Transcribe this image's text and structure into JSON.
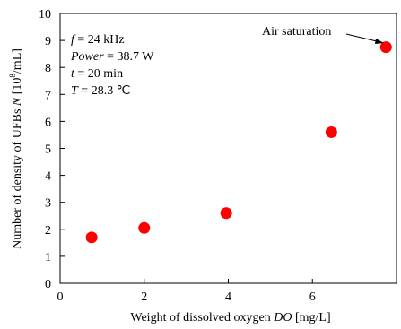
{
  "chart_data": {
    "type": "scatter",
    "title": "",
    "xlabel_prefix": "Weight of dissolved oxygen ",
    "xlabel_var": "DO",
    "xlabel_unit": " [mg/L]",
    "ylabel_prefix": "Number of density of UFBs ",
    "ylabel_var": "N",
    "ylabel_unit_a": " [10",
    "ylabel_unit_exp": "8",
    "ylabel_unit_b": "/mL]",
    "xlim": [
      0,
      8
    ],
    "ylim": [
      0,
      10
    ],
    "x_ticks": [
      "0",
      "2",
      "4",
      "6"
    ],
    "y_ticks": [
      "0",
      "1",
      "2",
      "3",
      "4",
      "5",
      "6",
      "7",
      "8",
      "9",
      "10"
    ],
    "grid": false,
    "marker_color": "#ff0000",
    "series": [
      {
        "x": [
          0.75,
          2.0,
          3.95,
          6.45,
          7.75
        ],
        "y": [
          1.7,
          2.05,
          2.6,
          5.6,
          8.75
        ]
      }
    ],
    "conditions": [
      {
        "var": "f",
        "text": " = 24 kHz"
      },
      {
        "var": "Power",
        "text": " = 38.7 W"
      },
      {
        "var": "t",
        "text": " = 20 min"
      },
      {
        "var": "T",
        "text": " = 28.3 ℃"
      }
    ],
    "annotation": {
      "text": "Air saturation",
      "x": 7.75,
      "y": 8.75
    }
  }
}
